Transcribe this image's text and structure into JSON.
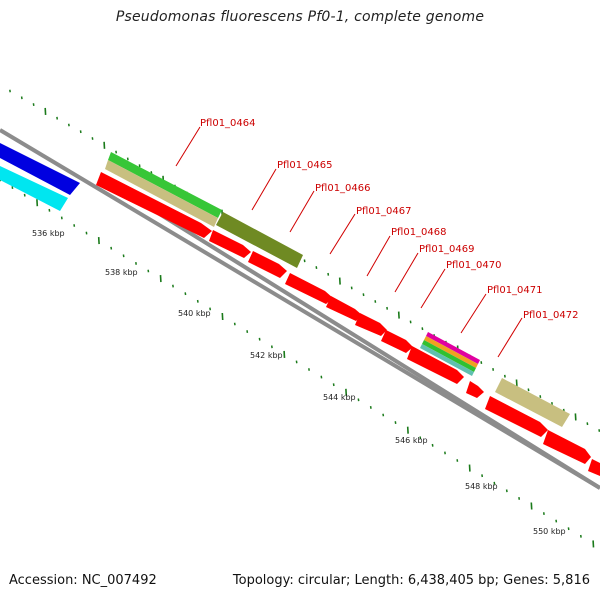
{
  "title": "Pseudomonas fluorescens Pf0-1, complete genome",
  "footer": {
    "accession": "Accession: NC_007492",
    "summary": "Topology: circular; Length: 6,438,405 bp; Genes: 5,816"
  },
  "colors": {
    "backbone": "#8c8c8c",
    "gene_forward_red": "#ff0000",
    "label_red": "#cc0000",
    "tick_green": "#1a7a1a",
    "blue": "#0000e0",
    "cyan": "#00ffff",
    "light_green": "#3ad23a",
    "tan": "#c8bf80",
    "olive": "#6f8a23",
    "magenta": "#e000a0",
    "orange": "#f0a020",
    "green": "#30c030",
    "teal": "#60c0b0"
  },
  "chart_data": {
    "type": "genome-map",
    "kbp_axis": {
      "labels": [
        "536 kbp",
        "538 kbp",
        "540 kbp",
        "542 kbp",
        "544 kbp",
        "546 kbp",
        "548 kbp",
        "550 kbp"
      ],
      "values": [
        536,
        538,
        540,
        542,
        544,
        546,
        548,
        550
      ]
    },
    "gene_labels": [
      "Pfl01_0464",
      "Pfl01_0465",
      "Pfl01_0466",
      "Pfl01_0467",
      "Pfl01_0468",
      "Pfl01_0469",
      "Pfl01_0470",
      "Pfl01_0471",
      "Pfl01_0472"
    ]
  }
}
